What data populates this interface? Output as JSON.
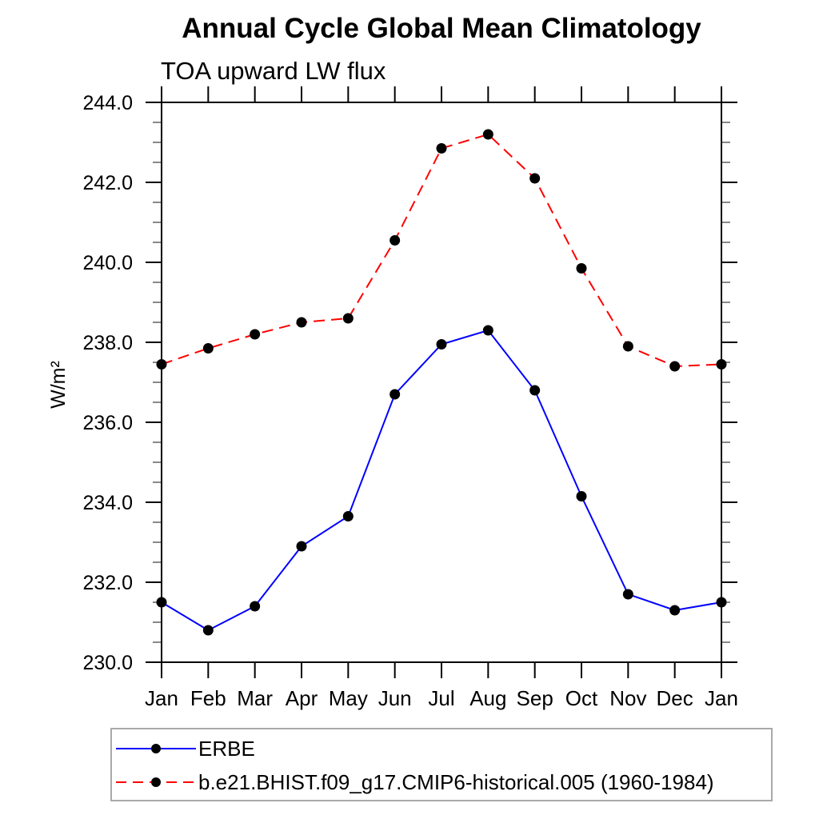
{
  "page": {
    "background_color": "#ffffff",
    "text_color": "#000000",
    "axis_color": "#000000",
    "minor_tick_color": "#555555",
    "legend_border_color": "#a9a9a9"
  },
  "chart_data": {
    "type": "line",
    "title": "Annual Cycle Global Mean Climatology",
    "subtitle": "TOA upward LW flux",
    "ylabel": "W/m²",
    "xlabel": "",
    "categories": [
      "Jan",
      "Feb",
      "Mar",
      "Apr",
      "May",
      "Jun",
      "Jul",
      "Aug",
      "Sep",
      "Oct",
      "Nov",
      "Dec",
      "Jan"
    ],
    "y_tick_labels": [
      "230.0",
      "232.0",
      "234.0",
      "236.0",
      "238.0",
      "240.0",
      "242.0",
      "244.0"
    ],
    "ylim": [
      230.0,
      244.0
    ],
    "y_major_step": 2.0,
    "y_minor_step": 0.5,
    "grid": false,
    "tick_direction": "out",
    "legend_position": "bottom-left",
    "series": [
      {
        "name": "ERBE",
        "color": "#0000ff",
        "style": "solid",
        "marker": "circle",
        "marker_color": "#000000",
        "values": [
          231.5,
          230.8,
          231.4,
          232.9,
          233.65,
          236.7,
          237.95,
          238.3,
          236.8,
          234.15,
          231.7,
          231.3,
          231.5
        ]
      },
      {
        "name": "b.e21.BHIST.f09_g17.CMIP6-historical.005 (1960-1984)",
        "color": "#ff0000",
        "style": "dashed",
        "marker": "circle",
        "marker_color": "#000000",
        "values": [
          237.45,
          237.85,
          238.2,
          238.5,
          238.6,
          240.55,
          242.85,
          243.2,
          242.1,
          239.85,
          237.9,
          237.4,
          237.45
        ]
      }
    ]
  }
}
